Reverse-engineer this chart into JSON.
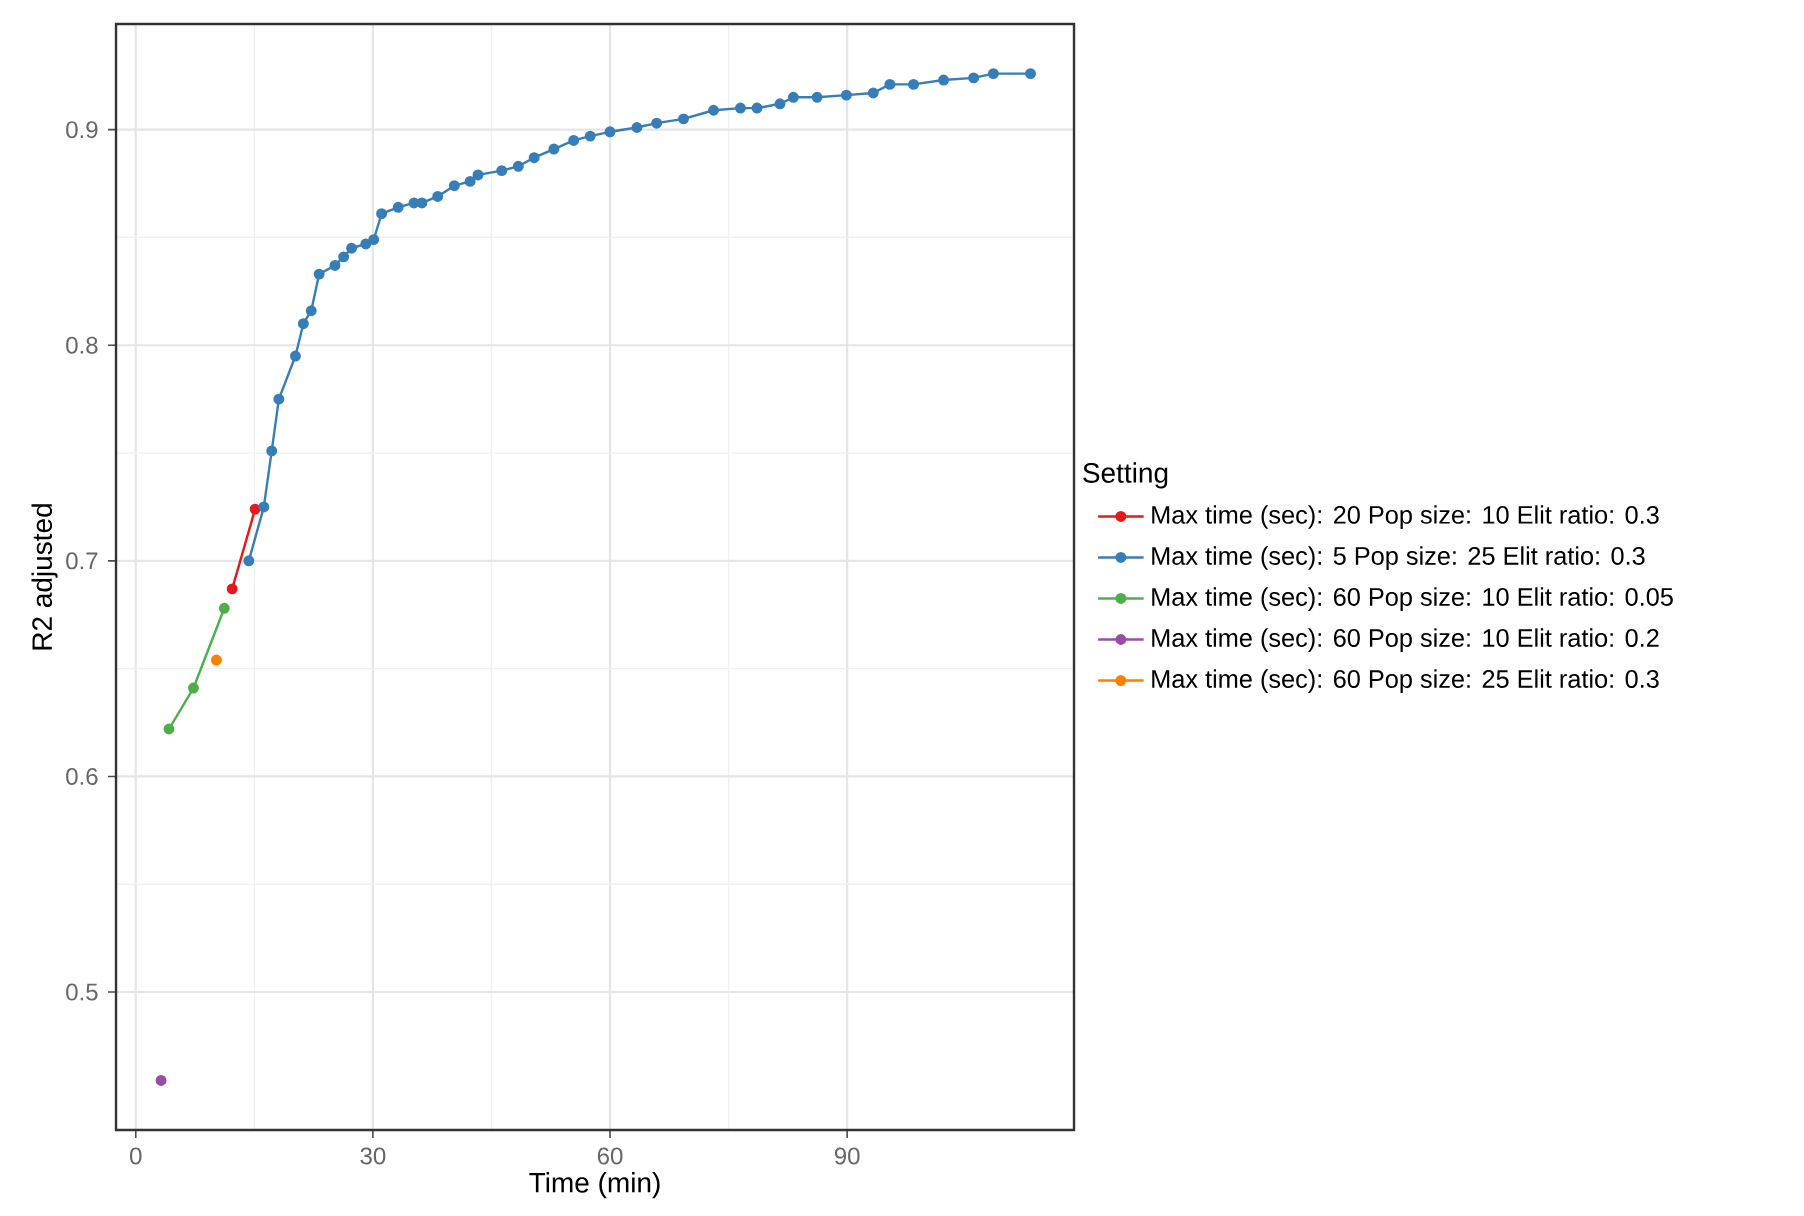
{
  "chart_data": {
    "type": "line",
    "xlabel": "Time (min)",
    "ylabel": "R2 adjusted",
    "legend_title": "Setting",
    "legend": "right",
    "grid": true,
    "marker": "circle",
    "line_style": "solid",
    "xlim": [
      -2.5,
      118.7
    ],
    "ylim": [
      0.436,
      0.949
    ],
    "xticks": [
      0,
      30,
      60,
      90
    ],
    "yticks": [
      0.5,
      0.6,
      0.7,
      0.8,
      0.9
    ],
    "series": [
      {
        "name": "Max time (sec):  20  Pop size:  10  Elit ratio:  0.3",
        "color": "#e41a1c",
        "x": [
          12.2,
          15.1
        ],
        "values": [
          0.687,
          0.724
        ]
      },
      {
        "name": "Max time (sec):  5  Pop size:  25  Elit ratio:  0.3",
        "color": "#377eb8",
        "x": [
          14.3,
          16.2,
          17.2,
          18.1,
          20.2,
          21.2,
          22.2,
          23.2,
          25.2,
          26.3,
          27.3,
          29.1,
          30.1,
          31.1,
          33.2,
          35.2,
          36.2,
          38.2,
          40.3,
          42.3,
          43.3,
          46.3,
          48.4,
          50.4,
          52.9,
          55.4,
          57.5,
          60.0,
          63.4,
          65.9,
          69.3,
          73.1,
          76.5,
          78.6,
          81.5,
          83.2,
          86.2,
          89.9,
          93.3,
          95.4,
          98.4,
          102.2,
          106.0,
          108.5,
          113.2
        ],
        "values": [
          0.7,
          0.725,
          0.751,
          0.775,
          0.795,
          0.81,
          0.816,
          0.833,
          0.837,
          0.841,
          0.845,
          0.847,
          0.849,
          0.861,
          0.864,
          0.866,
          0.866,
          0.869,
          0.874,
          0.876,
          0.879,
          0.881,
          0.883,
          0.887,
          0.891,
          0.895,
          0.897,
          0.899,
          0.901,
          0.903,
          0.905,
          0.909,
          0.91,
          0.91,
          0.912,
          0.915,
          0.915,
          0.916,
          0.917,
          0.921,
          0.921,
          0.923,
          0.924,
          0.926,
          0.926
        ]
      },
      {
        "name": "Max time (sec):  60  Pop size:  10  Elit ratio:  0.05",
        "color": "#4daf4a",
        "x": [
          4.2,
          7.3,
          11.2
        ],
        "values": [
          0.622,
          0.641,
          0.678
        ]
      },
      {
        "name": "Max time (sec):  60  Pop size:  10  Elit ratio:  0.2",
        "color": "#984ea3",
        "x": [
          3.2
        ],
        "values": [
          0.459
        ]
      },
      {
        "name": "Max time (sec):  60  Pop size:  25  Elit ratio:  0.3",
        "color": "#ff7f00",
        "x": [
          10.2
        ],
        "values": [
          0.654
        ]
      }
    ]
  }
}
